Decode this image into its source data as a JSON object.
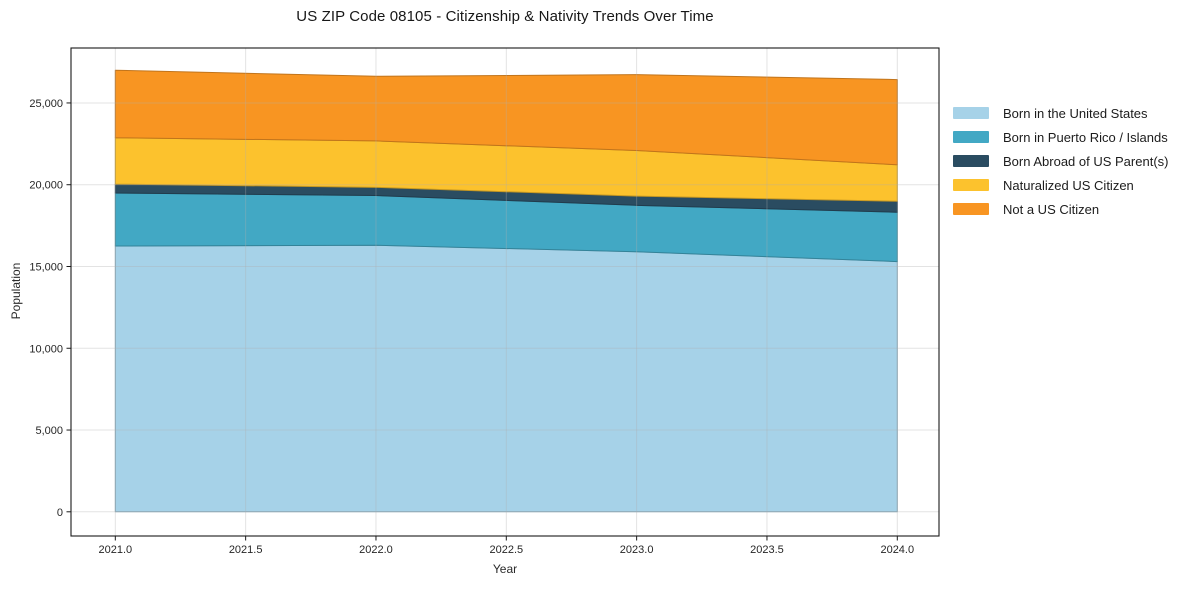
{
  "chart_data": {
    "type": "area",
    "stacked": true,
    "title": "US ZIP Code 08105 - Citizenship & Nativity Trends Over Time",
    "xlabel": "Year",
    "ylabel": "Population",
    "x": [
      2021,
      2022,
      2023,
      2024
    ],
    "series": [
      {
        "name": "Born in the United States",
        "color": "#a6d2e8",
        "values": [
          16250,
          16300,
          15900,
          15300
        ]
      },
      {
        "name": "Born in Puerto Rico / Islands",
        "color": "#42a8c4",
        "values": [
          3240,
          3040,
          2840,
          3020
        ]
      },
      {
        "name": "Born Abroad of US Parent(s)",
        "color": "#2a4c61",
        "values": [
          550,
          500,
          560,
          670
        ]
      },
      {
        "name": "Naturalized US Citizen",
        "color": "#fcc22d",
        "values": [
          2830,
          2840,
          2790,
          2230
        ]
      },
      {
        "name": "Not a US Citizen",
        "color": "#f89522",
        "values": [
          4130,
          3950,
          4640,
          5210
        ]
      }
    ],
    "totals_by_year": [
      27000,
      26630,
      26730,
      26430
    ],
    "xlim": [
      2020.83,
      2024.16
    ],
    "ylim": [
      -1480,
      28360
    ],
    "xticks": {
      "values": [
        2021.0,
        2021.5,
        2022.0,
        2022.5,
        2023.0,
        2023.5,
        2024.0
      ],
      "labels": [
        "2021.0",
        "2021.5",
        "2022.0",
        "2022.5",
        "2023.0",
        "2023.5",
        "2024.0"
      ]
    },
    "yticks": {
      "values": [
        0,
        5000,
        10000,
        15000,
        20000,
        25000
      ],
      "labels": [
        "0",
        "5,000",
        "10,000",
        "15,000",
        "20,000",
        "25,000"
      ]
    },
    "grid": true,
    "legend_position": "right-outside"
  }
}
